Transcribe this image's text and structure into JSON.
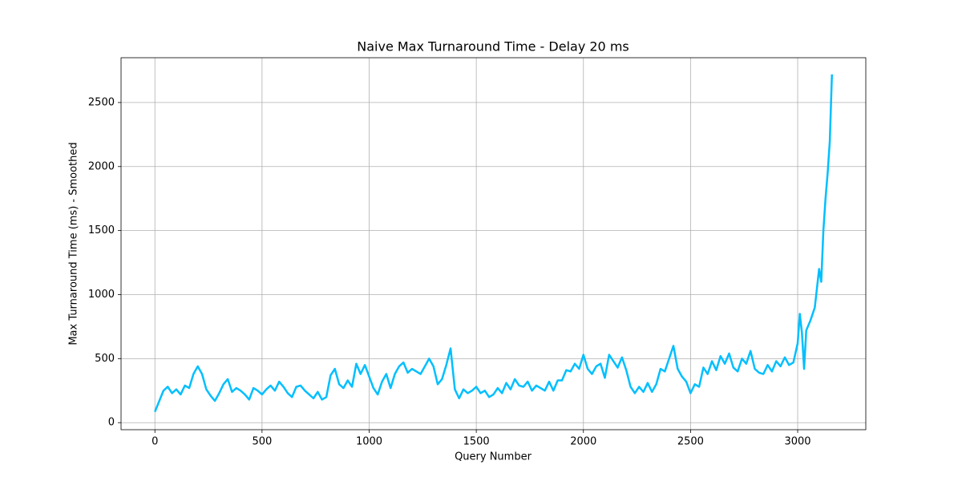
{
  "chart_data": {
    "type": "line",
    "title": "Naive Max Turnaround Time - Delay 20 ms",
    "x_label": "Query Number",
    "y_label": "Max Turnaround Time (ms) - Smoothed",
    "color": "#00bfff",
    "grid": true,
    "xlim": [
      -158,
      3318
    ],
    "xticks": [
      0,
      500,
      1000,
      1500,
      2000,
      2500,
      3000
    ],
    "ylim": [
      -55,
      2850
    ],
    "yticks": [
      0,
      500,
      1000,
      1500,
      2000,
      2500
    ],
    "x": [
      0,
      40,
      60,
      80,
      100,
      120,
      140,
      160,
      180,
      200,
      220,
      240,
      260,
      280,
      300,
      320,
      340,
      360,
      380,
      400,
      420,
      440,
      460,
      480,
      500,
      520,
      540,
      560,
      580,
      600,
      620,
      640,
      660,
      680,
      700,
      720,
      740,
      760,
      780,
      800,
      820,
      840,
      860,
      880,
      900,
      920,
      940,
      960,
      980,
      1000,
      1020,
      1040,
      1060,
      1080,
      1100,
      1120,
      1140,
      1160,
      1180,
      1200,
      1220,
      1240,
      1260,
      1280,
      1300,
      1320,
      1340,
      1360,
      1380,
      1400,
      1420,
      1440,
      1460,
      1480,
      1500,
      1520,
      1540,
      1560,
      1580,
      1600,
      1620,
      1640,
      1660,
      1680,
      1700,
      1720,
      1740,
      1760,
      1780,
      1800,
      1820,
      1840,
      1860,
      1880,
      1900,
      1920,
      1940,
      1960,
      1980,
      2000,
      2020,
      2040,
      2060,
      2080,
      2100,
      2120,
      2140,
      2160,
      2180,
      2200,
      2220,
      2240,
      2260,
      2280,
      2300,
      2320,
      2340,
      2360,
      2380,
      2400,
      2420,
      2440,
      2460,
      2480,
      2500,
      2520,
      2540,
      2560,
      2580,
      2600,
      2620,
      2640,
      2660,
      2680,
      2700,
      2720,
      2740,
      2760,
      2780,
      2800,
      2820,
      2840,
      2860,
      2880,
      2900,
      2920,
      2940,
      2960,
      2980,
      3000,
      3010,
      3020,
      3030,
      3040,
      3060,
      3080,
      3100,
      3110,
      3120,
      3130,
      3140,
      3150,
      3160
    ],
    "values": [
      85,
      250,
      280,
      230,
      260,
      220,
      290,
      270,
      380,
      440,
      380,
      260,
      210,
      170,
      230,
      300,
      340,
      240,
      270,
      250,
      220,
      180,
      270,
      250,
      220,
      260,
      290,
      250,
      320,
      280,
      230,
      200,
      280,
      290,
      250,
      220,
      190,
      240,
      180,
      200,
      370,
      420,
      300,
      270,
      330,
      280,
      460,
      380,
      450,
      360,
      270,
      220,
      320,
      380,
      270,
      380,
      440,
      470,
      390,
      420,
      400,
      380,
      440,
      500,
      440,
      300,
      340,
      450,
      580,
      260,
      190,
      260,
      230,
      250,
      280,
      230,
      250,
      200,
      220,
      270,
      230,
      310,
      260,
      340,
      290,
      280,
      320,
      250,
      290,
      270,
      250,
      320,
      250,
      330,
      330,
      410,
      400,
      460,
      420,
      530,
      420,
      380,
      440,
      460,
      350,
      530,
      480,
      430,
      510,
      410,
      280,
      230,
      280,
      240,
      310,
      240,
      300,
      420,
      400,
      500,
      600,
      420,
      360,
      320,
      230,
      300,
      280,
      430,
      380,
      480,
      410,
      520,
      460,
      540,
      430,
      400,
      500,
      460,
      560,
      420,
      390,
      380,
      450,
      400,
      480,
      440,
      510,
      450,
      470,
      620,
      850,
      700,
      420,
      720,
      800,
      900,
      1200,
      1100,
      1500,
      1750,
      1950,
      2200,
      2720
    ]
  }
}
